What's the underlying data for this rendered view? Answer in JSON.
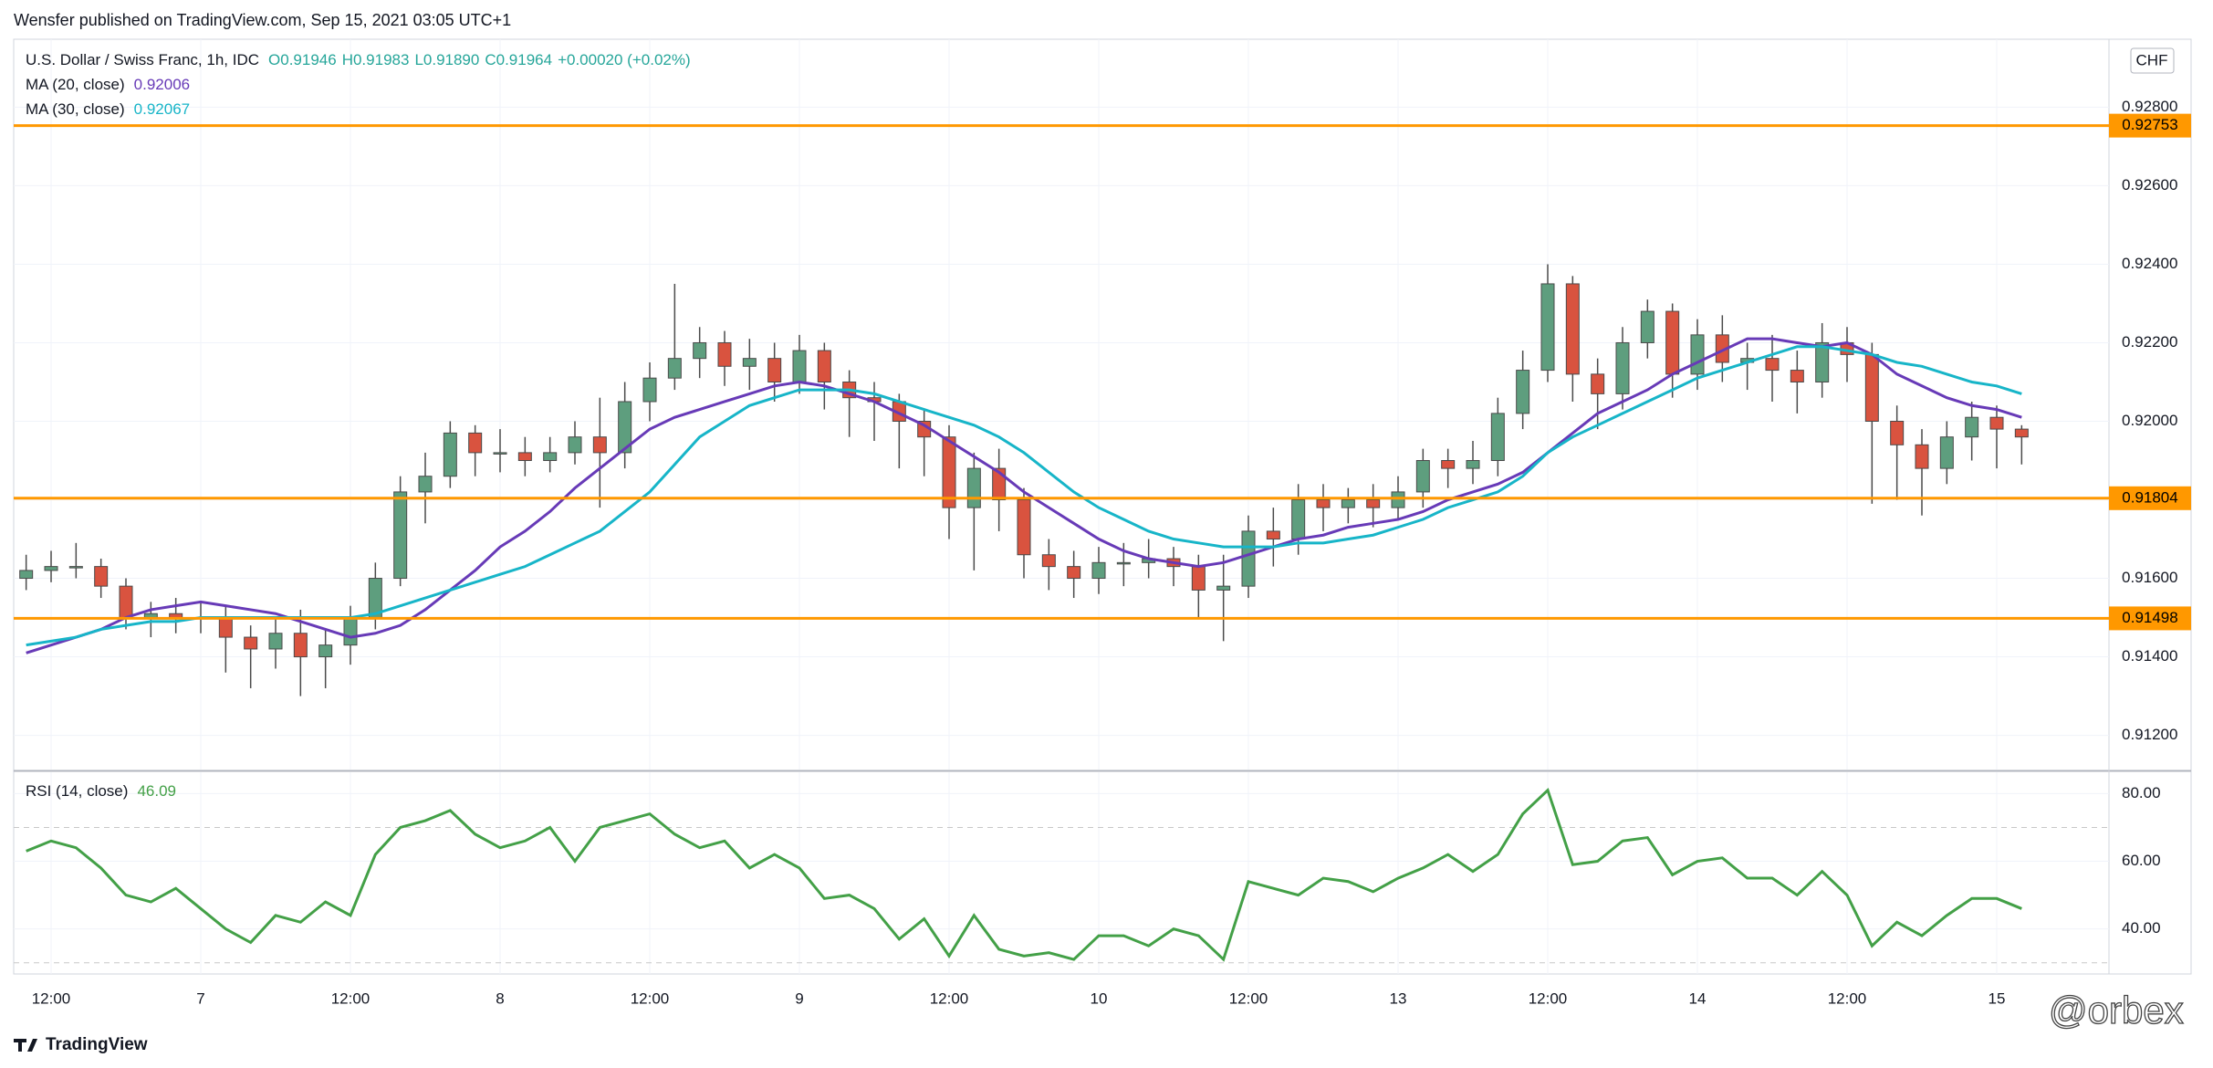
{
  "attribution": "Wensfer published on TradingView.com, Sep 15, 2021 03:05 UTC+1",
  "footer": "TradingView",
  "watermark": "@orbex",
  "chart_data": [
    {
      "type": "candlestick",
      "title": "U.S. Dollar / Swiss Franc, 1h, IDC",
      "ohlc_labels": [
        "O0.91946",
        "H0.91983",
        "L0.91890",
        "C0.91964",
        "+0.00020 (+0.02%)"
      ],
      "currency": "CHF",
      "up_color": "#5e9e7e",
      "down_color": "#d9533f",
      "x": [
        0,
        2,
        4,
        6,
        8,
        10,
        12,
        14,
        16,
        18,
        20,
        22,
        24,
        26,
        28,
        30,
        32,
        34,
        36,
        38,
        40,
        42,
        44,
        46,
        48,
        50,
        52,
        54,
        56,
        58,
        60,
        62,
        64,
        66,
        68,
        70,
        72,
        74,
        76,
        78,
        80,
        82,
        84,
        86,
        88,
        90,
        92,
        94,
        96,
        98,
        100,
        102,
        104,
        106,
        108,
        110,
        112,
        114,
        116,
        118,
        120,
        122,
        124,
        126,
        128,
        130,
        132,
        134,
        136,
        138,
        140,
        142,
        144,
        146,
        148,
        150,
        152,
        154,
        156,
        158,
        160
      ],
      "open": [
        0.916,
        0.9162,
        0.9163,
        0.9163,
        0.9158,
        0.915,
        0.9151,
        0.915,
        0.915,
        0.9145,
        0.9142,
        0.9146,
        0.914,
        0.9143,
        0.915,
        0.916,
        0.9182,
        0.9186,
        0.9197,
        0.9192,
        0.9192,
        0.919,
        0.9192,
        0.9196,
        0.9192,
        0.9205,
        0.9211,
        0.9216,
        0.922,
        0.9214,
        0.9216,
        0.921,
        0.9218,
        0.921,
        0.9206,
        0.9205,
        0.92,
        0.9196,
        0.9178,
        0.9188,
        0.918,
        0.9166,
        0.9163,
        0.916,
        0.9164,
        0.9164,
        0.9165,
        0.9163,
        0.9157,
        0.9158,
        0.9172,
        0.917,
        0.918,
        0.9178,
        0.918,
        0.9178,
        0.9182,
        0.919,
        0.9188,
        0.919,
        0.9202,
        0.9213,
        0.9235,
        0.9212,
        0.9207,
        0.922,
        0.9228,
        0.9212,
        0.9222,
        0.9215,
        0.9216,
        0.9213,
        0.921,
        0.922,
        0.9217,
        0.92,
        0.9194,
        0.9188,
        0.9196,
        0.9201,
        0.9198
      ],
      "high": [
        0.9166,
        0.9167,
        0.9169,
        0.9165,
        0.916,
        0.9154,
        0.9155,
        0.9154,
        0.9153,
        0.9148,
        0.915,
        0.9152,
        0.9147,
        0.9153,
        0.9164,
        0.9186,
        0.9192,
        0.92,
        0.9199,
        0.9198,
        0.9196,
        0.9196,
        0.92,
        0.9206,
        0.921,
        0.9215,
        0.9235,
        0.9224,
        0.9223,
        0.9221,
        0.922,
        0.9222,
        0.922,
        0.9213,
        0.921,
        0.9207,
        0.9203,
        0.9199,
        0.9192,
        0.9193,
        0.9183,
        0.917,
        0.9167,
        0.9168,
        0.9169,
        0.917,
        0.9168,
        0.9166,
        0.9166,
        0.9176,
        0.9178,
        0.9184,
        0.9184,
        0.9183,
        0.9184,
        0.9186,
        0.9193,
        0.9193,
        0.9195,
        0.9206,
        0.9218,
        0.924,
        0.9237,
        0.9216,
        0.9224,
        0.9231,
        0.923,
        0.9226,
        0.9227,
        0.922,
        0.9222,
        0.9218,
        0.9225,
        0.9224,
        0.922,
        0.9204,
        0.9198,
        0.92,
        0.9205,
        0.9204,
        0.9199
      ],
      "low": [
        0.9157,
        0.9159,
        0.916,
        0.9155,
        0.9147,
        0.9145,
        0.9146,
        0.9146,
        0.9136,
        0.9132,
        0.9137,
        0.913,
        0.9132,
        0.9138,
        0.9147,
        0.9158,
        0.9174,
        0.9183,
        0.9186,
        0.9187,
        0.9186,
        0.9187,
        0.9189,
        0.9178,
        0.9188,
        0.92,
        0.9208,
        0.9211,
        0.9209,
        0.9208,
        0.9205,
        0.9207,
        0.9203,
        0.9196,
        0.9195,
        0.9188,
        0.9186,
        0.917,
        0.9162,
        0.9172,
        0.916,
        0.9157,
        0.9155,
        0.9156,
        0.9158,
        0.916,
        0.9158,
        0.915,
        0.9144,
        0.9155,
        0.9163,
        0.9166,
        0.9172,
        0.9174,
        0.9173,
        0.9175,
        0.9178,
        0.9183,
        0.9184,
        0.9186,
        0.9198,
        0.921,
        0.9205,
        0.9198,
        0.9203,
        0.9216,
        0.9206,
        0.9208,
        0.921,
        0.9208,
        0.9205,
        0.9202,
        0.9206,
        0.921,
        0.9179,
        0.918,
        0.9176,
        0.9184,
        0.919,
        0.9188,
        0.9189
      ],
      "close": [
        0.9162,
        0.9163,
        0.9163,
        0.9158,
        0.915,
        0.9151,
        0.915,
        0.915,
        0.9145,
        0.9142,
        0.9146,
        0.914,
        0.9143,
        0.915,
        0.916,
        0.9182,
        0.9186,
        0.9197,
        0.9192,
        0.9192,
        0.919,
        0.9192,
        0.9196,
        0.9192,
        0.9205,
        0.9211,
        0.9216,
        0.922,
        0.9214,
        0.9216,
        0.921,
        0.9218,
        0.921,
        0.9206,
        0.9205,
        0.92,
        0.9196,
        0.9178,
        0.9188,
        0.918,
        0.9166,
        0.9163,
        0.916,
        0.9164,
        0.9164,
        0.9165,
        0.9163,
        0.9157,
        0.9158,
        0.9172,
        0.917,
        0.918,
        0.9178,
        0.918,
        0.9178,
        0.9182,
        0.919,
        0.9188,
        0.919,
        0.9202,
        0.9213,
        0.9235,
        0.9212,
        0.9207,
        0.922,
        0.9228,
        0.9212,
        0.9222,
        0.9215,
        0.9216,
        0.9213,
        0.921,
        0.922,
        0.9217,
        0.92,
        0.9194,
        0.9188,
        0.9196,
        0.9201,
        0.9198,
        0.9196
      ],
      "series": [
        {
          "name": "MA (20, close)",
          "value_label": "0.92006",
          "color": "#673ab7",
          "values": [
            0.9141,
            0.9143,
            0.9145,
            0.9147,
            0.915,
            0.9152,
            0.9153,
            0.9154,
            0.9153,
            0.9152,
            0.9151,
            0.9149,
            0.9147,
            0.9145,
            0.9146,
            0.9148,
            0.9152,
            0.9157,
            0.9162,
            0.9168,
            0.9172,
            0.9177,
            0.9183,
            0.9188,
            0.9193,
            0.9198,
            0.9201,
            0.9203,
            0.9205,
            0.9207,
            0.9209,
            0.921,
            0.9209,
            0.9207,
            0.9205,
            0.9202,
            0.9199,
            0.9195,
            0.9191,
            0.9187,
            0.9182,
            0.9178,
            0.9174,
            0.917,
            0.9167,
            0.9165,
            0.9164,
            0.9163,
            0.9164,
            0.9166,
            0.9168,
            0.917,
            0.9171,
            0.9173,
            0.9174,
            0.9175,
            0.9177,
            0.918,
            0.9182,
            0.9184,
            0.9187,
            0.9192,
            0.9197,
            0.9202,
            0.9205,
            0.9208,
            0.9212,
            0.9215,
            0.9218,
            0.9221,
            0.9221,
            0.922,
            0.9219,
            0.922,
            0.9217,
            0.9212,
            0.9209,
            0.9206,
            0.9204,
            0.9203,
            0.9201
          ]
        },
        {
          "name": "MA (30, close)",
          "value_label": "0.92067",
          "color": "#17b5c8",
          "values": [
            0.9143,
            0.9144,
            0.9145,
            0.9147,
            0.9148,
            0.9149,
            0.9149,
            0.915,
            0.915,
            0.915,
            0.915,
            0.915,
            0.915,
            0.915,
            0.9151,
            0.9153,
            0.9155,
            0.9157,
            0.9159,
            0.9161,
            0.9163,
            0.9166,
            0.9169,
            0.9172,
            0.9177,
            0.9182,
            0.9189,
            0.9196,
            0.92,
            0.9204,
            0.9206,
            0.9208,
            0.9208,
            0.9208,
            0.9207,
            0.9205,
            0.9203,
            0.9201,
            0.9199,
            0.9196,
            0.9192,
            0.9187,
            0.9182,
            0.9178,
            0.9175,
            0.9172,
            0.917,
            0.9169,
            0.9168,
            0.9168,
            0.9168,
            0.9169,
            0.9169,
            0.917,
            0.9171,
            0.9173,
            0.9175,
            0.9178,
            0.918,
            0.9182,
            0.9186,
            0.9192,
            0.9196,
            0.9199,
            0.9202,
            0.9205,
            0.9208,
            0.9211,
            0.9213,
            0.9215,
            0.9217,
            0.9219,
            0.9219,
            0.9218,
            0.9217,
            0.9215,
            0.9214,
            0.9212,
            0.921,
            0.9209,
            0.9207
          ]
        }
      ],
      "levels": {
        "color": "#ff9800",
        "values": [
          0.92753,
          0.91804,
          0.91498
        ]
      },
      "xlim": [
        -1,
        167
      ],
      "ylim": [
        0.91113,
        0.92973
      ],
      "yticks": [
        {
          "value": 0.912,
          "label": "0.91200"
        },
        {
          "value": 0.914,
          "label": "0.91400"
        },
        {
          "value": 0.916,
          "label": "0.91600"
        },
        {
          "value": 0.918,
          "label": "0.91800"
        },
        {
          "value": 0.92,
          "label": "0.92000"
        },
        {
          "value": 0.922,
          "label": "0.92200"
        },
        {
          "value": 0.924,
          "label": "0.92400"
        },
        {
          "value": 0.926,
          "label": "0.92600"
        },
        {
          "value": 0.928,
          "label": "0.92800"
        }
      ],
      "xticks": [
        {
          "value": 2,
          "label": "12:00"
        },
        {
          "value": 14,
          "label": "7"
        },
        {
          "value": 26,
          "label": "12:00"
        },
        {
          "value": 38,
          "label": "8"
        },
        {
          "value": 50,
          "label": "12:00"
        },
        {
          "value": 62,
          "label": "9"
        },
        {
          "value": 74,
          "label": "12:00"
        },
        {
          "value": 86,
          "label": "10"
        },
        {
          "value": 98,
          "label": "12:00"
        },
        {
          "value": 110,
          "label": "13"
        },
        {
          "value": 122,
          "label": "12:00"
        },
        {
          "value": 134,
          "label": "14"
        },
        {
          "value": 146,
          "label": "12:00"
        },
        {
          "value": 158,
          "label": "15"
        }
      ],
      "grid": true
    },
    {
      "type": "line",
      "series": [
        {
          "name": "RSI (14, close)",
          "value_label": "46.09",
          "color": "#43a047",
          "values": [
            63,
            66,
            64,
            58,
            50,
            48,
            52,
            46,
            40,
            36,
            44,
            42,
            48,
            44,
            62,
            70,
            72,
            75,
            68,
            64,
            66,
            70,
            60,
            70,
            72,
            74,
            68,
            64,
            66,
            58,
            62,
            58,
            49,
            50,
            46,
            37,
            43,
            32,
            44,
            34,
            32,
            33,
            31,
            38,
            38,
            35,
            40,
            38,
            31,
            54,
            52,
            50,
            55,
            54,
            51,
            55,
            58,
            62,
            57,
            62,
            74,
            81,
            59,
            60,
            66,
            67,
            56,
            60,
            61,
            55,
            55,
            50,
            57,
            50,
            35,
            42,
            38,
            44,
            49,
            49,
            46
          ]
        }
      ],
      "bands": [
        30,
        70
      ],
      "ylim": [
        26.7,
        86.3
      ],
      "yticks": [
        {
          "value": 40,
          "label": "40.00"
        },
        {
          "value": 60,
          "label": "60.00"
        },
        {
          "value": 80,
          "label": "80.00"
        }
      ],
      "grid": true
    }
  ]
}
